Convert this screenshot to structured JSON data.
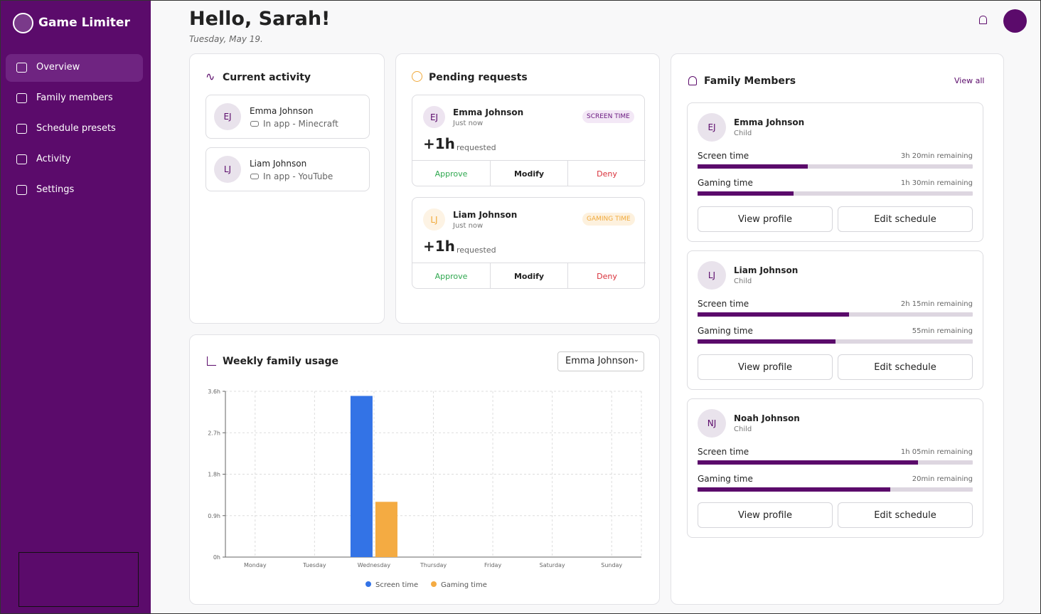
{
  "sidebar": {
    "brand": "Game Limiter",
    "nav": [
      "Overview",
      "Family members",
      "Schedule presets",
      "Activity",
      "Settings"
    ]
  },
  "header": {
    "title": "Hello, Sarah!",
    "date": "Tuesday, May 19."
  },
  "current_activity": {
    "title": "Current activity",
    "items": [
      {
        "initials": "EJ",
        "name": "Emma Johnson",
        "status": "In app - Minecraft"
      },
      {
        "initials": "LJ",
        "name": "Liam Johnson",
        "status": "In app - YouTube"
      }
    ]
  },
  "pending_requests": {
    "title": "Pending requests",
    "items": [
      {
        "initials": "EJ",
        "name": "Emma Johnson",
        "time": "Just now",
        "badge": "SCREEN TIME",
        "amount": "+1h",
        "amount_note": "requested",
        "actions": [
          "Approve",
          "Modify",
          "Deny"
        ]
      },
      {
        "initials": "LJ",
        "name": "Liam Johnson",
        "time": "Just now",
        "badge": "GAMING TIME",
        "amount": "+1h",
        "amount_note": "requested",
        "actions": [
          "Approve",
          "Modify",
          "Deny"
        ]
      }
    ]
  },
  "family_members": {
    "title": "Family Members",
    "view_all": "View all",
    "members": [
      {
        "initials": "EJ",
        "name": "Emma Johnson",
        "role": "Child",
        "bars": [
          {
            "label": "Screen time",
            "remaining": "3h 20min remaining",
            "percent": 40
          },
          {
            "label": "Gaming time",
            "remaining": "1h 30min remaining",
            "percent": 35
          }
        ],
        "actions": [
          "View profile",
          "Edit schedule"
        ]
      },
      {
        "initials": "LJ",
        "name": "Liam Johnson",
        "role": "Child",
        "bars": [
          {
            "label": "Screen time",
            "remaining": "2h 15min remaining",
            "percent": 55
          },
          {
            "label": "Gaming time",
            "remaining": "55min remaining",
            "percent": 50
          }
        ],
        "actions": [
          "View profile",
          "Edit schedule"
        ]
      },
      {
        "initials": "NJ",
        "name": "Noah Johnson",
        "role": "Child",
        "bars": [
          {
            "label": "Screen time",
            "remaining": "1h 05min remaining",
            "percent": 80
          },
          {
            "label": "Gaming time",
            "remaining": "20min remaining",
            "percent": 70
          }
        ],
        "actions": [
          "View profile",
          "Edit schedule"
        ]
      }
    ]
  },
  "weekly_usage": {
    "title": "Weekly family usage",
    "selector": "Emma Johnson"
  },
  "chart_data": {
    "type": "bar",
    "categories": [
      "Monday",
      "Tuesday",
      "Wednesday",
      "Thursday",
      "Friday",
      "Saturday",
      "Sunday"
    ],
    "series": [
      {
        "name": "Screen time",
        "color": "#3373e6",
        "values": [
          0,
          0,
          3.5,
          0,
          0,
          0,
          0
        ]
      },
      {
        "name": "Gaming time",
        "color": "#f4ab42",
        "values": [
          0,
          0,
          1.2,
          0,
          0,
          0,
          0
        ]
      }
    ],
    "ylim": [
      0,
      3.6
    ],
    "yticks": [
      {
        "value": 0,
        "label": "0h"
      },
      {
        "value": 0.9,
        "label": "0.9h"
      },
      {
        "value": 1.8,
        "label": "1.8h"
      },
      {
        "value": 2.7,
        "label": "2.7h"
      },
      {
        "value": 3.6,
        "label": "3.6h"
      }
    ],
    "grid": true
  }
}
